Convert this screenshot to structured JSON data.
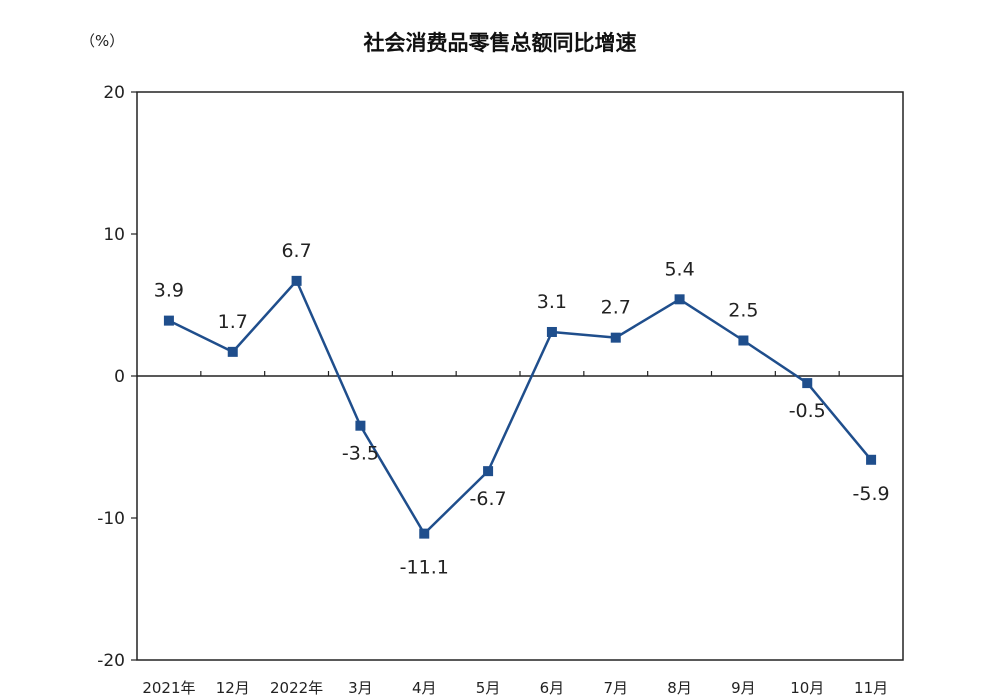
{
  "chart_data": {
    "type": "line",
    "title": "社会消费品零售总额同比增速",
    "ylabel": "（%）",
    "xlabel": "",
    "ylim": [
      -20,
      20
    ],
    "yticks": [
      "20",
      "10",
      "0",
      "-10",
      "-20"
    ],
    "categories": [
      "2021年",
      "12月",
      "2022年",
      "3月",
      "4月",
      "5月",
      "6月",
      "7月",
      "8月",
      "9月",
      "10月",
      "11月"
    ],
    "series": [
      {
        "values": [
          3.9,
          1.7,
          6.7,
          -3.5,
          -11.1,
          -6.7,
          3.1,
          2.7,
          5.4,
          2.5,
          -0.5,
          -5.9
        ],
        "labels": [
          "3.9",
          "1.7",
          "6.7",
          "-3.5",
          "-11.1",
          "-6.7",
          "3.1",
          "2.7",
          "5.4",
          "2.5",
          "-0.5",
          "-5.9"
        ],
        "color": "#1f4e8c"
      }
    ],
    "grid": false,
    "legend": "none"
  }
}
